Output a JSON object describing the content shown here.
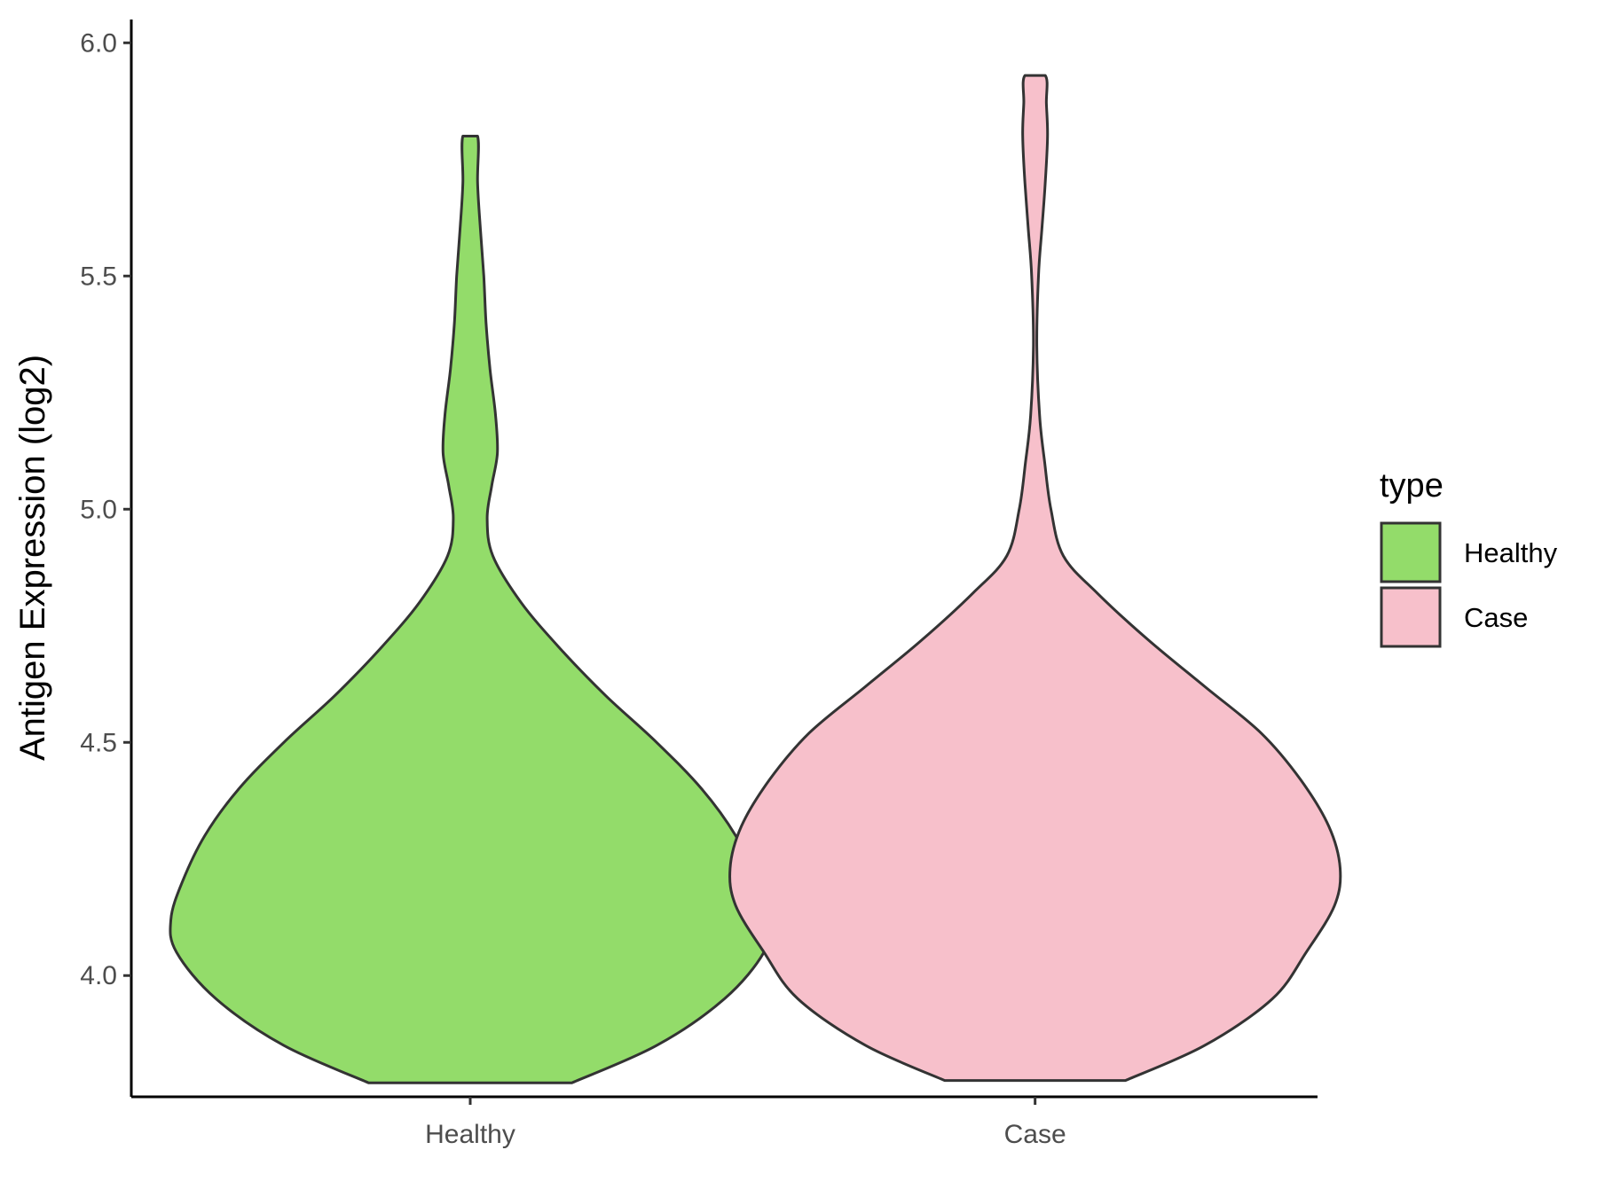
{
  "chart_data": {
    "type": "violin",
    "categories": [
      "Healthy",
      "Case"
    ],
    "ylabel": "Antigen Expression (log2)",
    "xlabel": "",
    "ylim": [
      3.74,
      6.05
    ],
    "yticks": [
      "4.0",
      "4.5",
      "5.0",
      "5.5",
      "6.0"
    ],
    "ytick_values": [
      4.0,
      4.5,
      5.0,
      5.5,
      6.0
    ],
    "legend": {
      "title": "type",
      "position": "right",
      "entries": [
        {
          "label": "Healthy",
          "color": "#93dc6a"
        },
        {
          "label": "Case",
          "color": "#f7c0cb"
        }
      ]
    },
    "series": [
      {
        "category": "Healthy",
        "color": "#93dc6a",
        "density_profile": [
          {
            "y": 3.77,
            "half_width": 0.18
          },
          {
            "y": 3.85,
            "half_width": 0.33
          },
          {
            "y": 3.95,
            "half_width": 0.45
          },
          {
            "y": 4.05,
            "half_width": 0.52
          },
          {
            "y": 4.12,
            "half_width": 0.53
          },
          {
            "y": 4.2,
            "half_width": 0.51
          },
          {
            "y": 4.3,
            "half_width": 0.47
          },
          {
            "y": 4.4,
            "half_width": 0.41
          },
          {
            "y": 4.5,
            "half_width": 0.33
          },
          {
            "y": 4.6,
            "half_width": 0.24
          },
          {
            "y": 4.7,
            "half_width": 0.16
          },
          {
            "y": 4.8,
            "half_width": 0.09
          },
          {
            "y": 4.9,
            "half_width": 0.04
          },
          {
            "y": 4.98,
            "half_width": 0.03
          },
          {
            "y": 5.05,
            "half_width": 0.038
          },
          {
            "y": 5.12,
            "half_width": 0.048
          },
          {
            "y": 5.2,
            "half_width": 0.045
          },
          {
            "y": 5.3,
            "half_width": 0.035
          },
          {
            "y": 5.4,
            "half_width": 0.028
          },
          {
            "y": 5.5,
            "half_width": 0.024
          },
          {
            "y": 5.6,
            "half_width": 0.018
          },
          {
            "y": 5.7,
            "half_width": 0.013
          },
          {
            "y": 5.8,
            "half_width": 0.013
          }
        ]
      },
      {
        "category": "Case",
        "color": "#f7c0cb",
        "density_profile": [
          {
            "y": 3.775,
            "half_width": 0.16
          },
          {
            "y": 3.85,
            "half_width": 0.3
          },
          {
            "y": 3.95,
            "half_width": 0.42
          },
          {
            "y": 4.05,
            "half_width": 0.48
          },
          {
            "y": 4.15,
            "half_width": 0.53
          },
          {
            "y": 4.23,
            "half_width": 0.54
          },
          {
            "y": 4.32,
            "half_width": 0.52
          },
          {
            "y": 4.42,
            "half_width": 0.47
          },
          {
            "y": 4.52,
            "half_width": 0.4
          },
          {
            "y": 4.62,
            "half_width": 0.3
          },
          {
            "y": 4.72,
            "half_width": 0.2
          },
          {
            "y": 4.82,
            "half_width": 0.11
          },
          {
            "y": 4.9,
            "half_width": 0.05
          },
          {
            "y": 5.0,
            "half_width": 0.028
          },
          {
            "y": 5.1,
            "half_width": 0.017
          },
          {
            "y": 5.2,
            "half_width": 0.008
          },
          {
            "y": 5.35,
            "half_width": 0.003
          },
          {
            "y": 5.5,
            "half_width": 0.006
          },
          {
            "y": 5.6,
            "half_width": 0.012
          },
          {
            "y": 5.7,
            "half_width": 0.018
          },
          {
            "y": 5.8,
            "half_width": 0.022
          },
          {
            "y": 5.87,
            "half_width": 0.02
          },
          {
            "y": 5.93,
            "half_width": 0.018
          }
        ]
      }
    ]
  }
}
